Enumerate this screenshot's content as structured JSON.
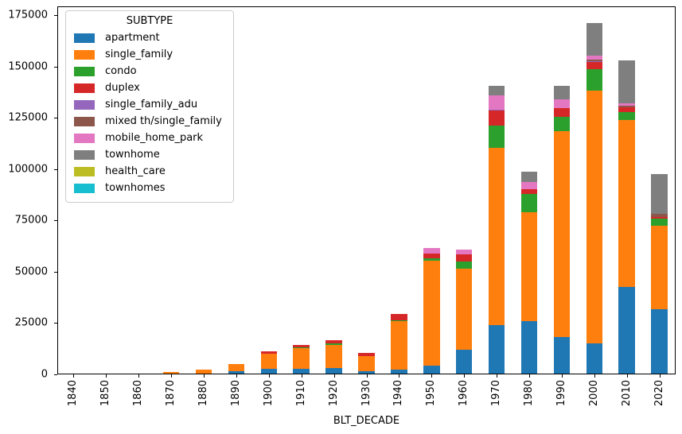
{
  "figure": {
    "xlabel": "BLT_DECADE",
    "background_color": "#ffffff"
  },
  "legend": {
    "title": "SUBTYPE",
    "position": "upper left",
    "border_color": "#cccccc"
  },
  "chart_data": {
    "type": "bar",
    "stacked": true,
    "title": "",
    "xlabel": "BLT_DECADE",
    "ylabel": "",
    "grid": false,
    "ylim": [
      0,
      179400
    ],
    "yticks": [
      0,
      25000,
      50000,
      75000,
      100000,
      125000,
      150000,
      175000
    ],
    "legend_title": "SUBTYPE",
    "legend_position": "upper left",
    "categories": [
      "1840",
      "1850",
      "1860",
      "1870",
      "1880",
      "1890",
      "1900",
      "1910",
      "1920",
      "1930",
      "1940",
      "1950",
      "1960",
      "1970",
      "1980",
      "1990",
      "2000",
      "2010",
      "2020"
    ],
    "series": [
      {
        "name": "apartment",
        "color": "#1f77b4",
        "values": [
          0,
          0,
          0,
          0,
          0,
          1200,
          2500,
          2400,
          2800,
          1300,
          1800,
          3700,
          11500,
          23500,
          25700,
          17800,
          14800,
          42300,
          31500
        ]
      },
      {
        "name": "single_family",
        "color": "#ff7f0e",
        "values": [
          0,
          0,
          0,
          800,
          1800,
          3500,
          7200,
          9900,
          11100,
          7400,
          23900,
          51500,
          39800,
          86500,
          53000,
          100500,
          123000,
          81400,
          40700
        ]
      },
      {
        "name": "condo",
        "color": "#2ca02c",
        "values": [
          0,
          0,
          0,
          0,
          0,
          0,
          0,
          400,
          1000,
          0,
          400,
          900,
          3200,
          11000,
          9000,
          6800,
          10700,
          3600,
          3500
        ]
      },
      {
        "name": "duplex",
        "color": "#d62728",
        "values": [
          0,
          0,
          0,
          0,
          0,
          0,
          1200,
          1200,
          1500,
          1200,
          2900,
          2600,
          3600,
          7300,
          2200,
          4200,
          3500,
          2600,
          700
        ]
      },
      {
        "name": "single_family_adu",
        "color": "#9467bd",
        "values": [
          0,
          0,
          0,
          0,
          0,
          0,
          0,
          0,
          0,
          0,
          0,
          0,
          0,
          500,
          0,
          0,
          400,
          0,
          0
        ]
      },
      {
        "name": "mixed th/single_family",
        "color": "#8c564b",
        "values": [
          0,
          0,
          0,
          0,
          0,
          0,
          0,
          0,
          0,
          0,
          0,
          0,
          0,
          0,
          0,
          0,
          500,
          800,
          1300
        ]
      },
      {
        "name": "mobile_home_park",
        "color": "#e377c2",
        "values": [
          0,
          0,
          0,
          0,
          0,
          0,
          0,
          0,
          0,
          0,
          0,
          2600,
          2500,
          6900,
          3600,
          4400,
          2000,
          900,
          0
        ]
      },
      {
        "name": "townhome",
        "color": "#7f7f7f",
        "values": [
          0,
          0,
          0,
          0,
          0,
          0,
          0,
          0,
          0,
          0,
          0,
          0,
          0,
          4500,
          4900,
          6400,
          16000,
          21000,
          19500
        ]
      },
      {
        "name": "health_care",
        "color": "#bcbd22",
        "values": [
          0,
          0,
          0,
          0,
          0,
          0,
          0,
          0,
          0,
          0,
          0,
          0,
          0,
          0,
          0,
          0,
          0,
          0,
          0
        ]
      },
      {
        "name": "townhomes",
        "color": "#17becf",
        "values": [
          0,
          0,
          0,
          0,
          0,
          0,
          0,
          0,
          0,
          0,
          0,
          0,
          0,
          0,
          0,
          0,
          0,
          0,
          0
        ]
      }
    ]
  }
}
